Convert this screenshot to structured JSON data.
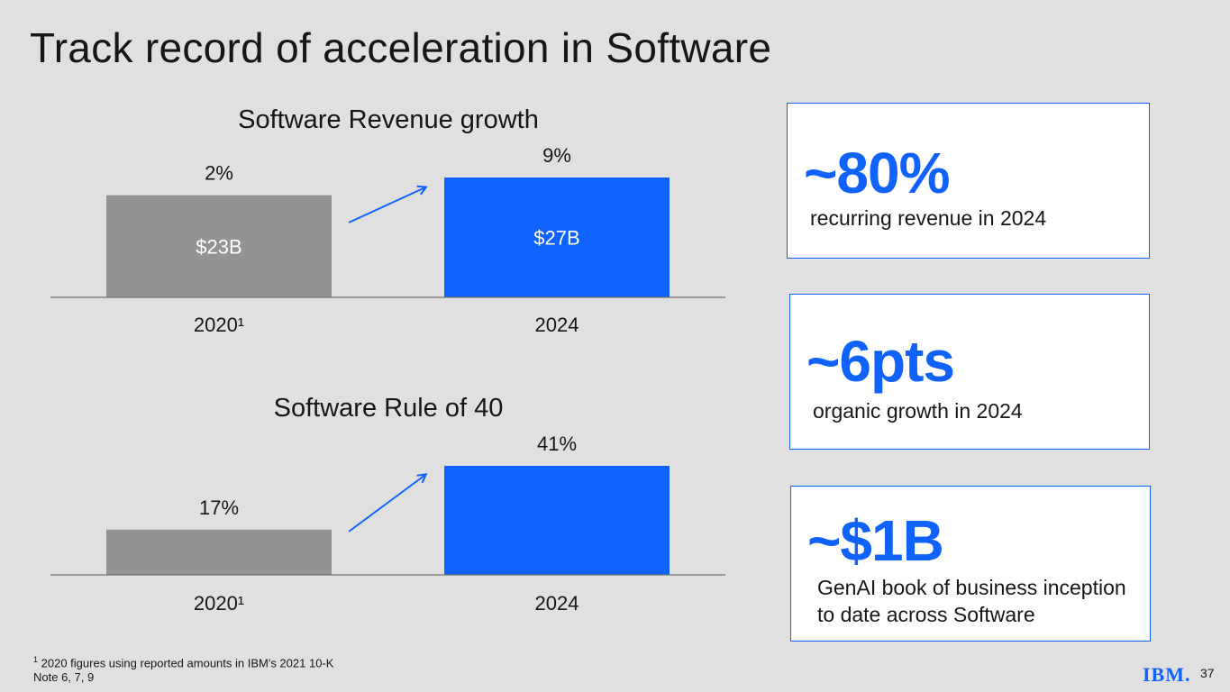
{
  "title": "Track record of acceleration in Software",
  "colors": {
    "gray_bar": "#939393",
    "blue_bar": "#0f62fe",
    "axis": "#6f6f6f",
    "arrow": "#0f62fe"
  },
  "chart_data": [
    {
      "type": "bar",
      "title": "Software Revenue growth",
      "categories": [
        "2020¹",
        "2024"
      ],
      "values": [
        23,
        27
      ],
      "bar_labels": [
        "$23B",
        "$27B"
      ],
      "top_labels": [
        "2%",
        "9%"
      ],
      "growth_values": [
        2,
        9
      ],
      "xlabel": "",
      "ylabel": "",
      "ylim": [
        0,
        30
      ],
      "note": "arrow from 2020 to 2024"
    },
    {
      "type": "bar",
      "title": "Software Rule of 40",
      "categories": [
        "2020¹",
        "2024"
      ],
      "values": [
        17,
        41
      ],
      "top_labels": [
        "17%",
        "41%"
      ],
      "xlabel": "",
      "ylabel": "",
      "ylim": [
        0,
        45
      ],
      "note": "arrow from 2020 to 2024"
    }
  ],
  "cards": [
    {
      "big": "~80%",
      "sub": "recurring revenue in 2024"
    },
    {
      "big": "~6pts",
      "sub": "organic growth in 2024"
    },
    {
      "big": "~$1B",
      "sub": "GenAI book of business inception to date across Software"
    }
  ],
  "footnote": {
    "marker": "1",
    "line1": "2020 figures using reported amounts in IBM's 2021 10-K",
    "line2": "Note 6, 7, 9"
  },
  "logo": "IBM.",
  "page_number": "37"
}
